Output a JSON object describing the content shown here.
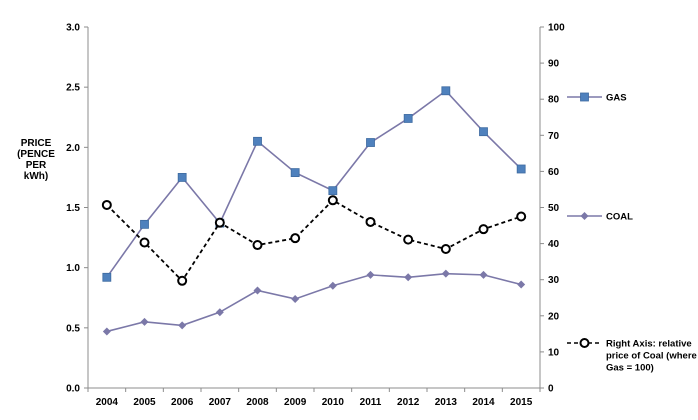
{
  "chart_data": {
    "type": "line",
    "title": "",
    "ylabel_lines": [
      "PRICE",
      "(PENCE",
      "PER",
      "kWh)"
    ],
    "x": [
      "2004",
      "2005",
      "2006",
      "2007",
      "2008",
      "2009",
      "2010",
      "2011",
      "2012",
      "2013",
      "2014",
      "2015"
    ],
    "ylim": [
      0,
      3.0
    ],
    "yticks": [
      "0.0",
      "0.5",
      "1.0",
      "1.5",
      "2.0",
      "2.5",
      "3.0"
    ],
    "y2lim": [
      0,
      100
    ],
    "y2ticks": [
      "0",
      "10",
      "20",
      "30",
      "40",
      "50",
      "60",
      "70",
      "80",
      "90",
      "100"
    ],
    "grid": false,
    "legend_position": "right",
    "series": [
      {
        "name": "GAS",
        "axis": "left",
        "marker": "square",
        "color": "#7b78a8",
        "marker_color": "#4f81bd",
        "values": [
          0.92,
          1.36,
          1.75,
          1.37,
          2.05,
          1.79,
          1.64,
          2.04,
          2.24,
          2.47,
          2.13,
          1.82
        ]
      },
      {
        "name": "COAL",
        "axis": "left",
        "marker": "diamond",
        "color": "#7b78a8",
        "marker_color": "#7b78a8",
        "values": [
          0.47,
          0.55,
          0.52,
          0.63,
          0.81,
          0.74,
          0.85,
          0.94,
          0.92,
          0.95,
          0.94,
          0.86
        ]
      },
      {
        "name": "Right Axis: relative price of Coal (where Gas = 100)",
        "axis": "right",
        "marker": "circle",
        "dashed": true,
        "color": "#000000",
        "legend_lines": [
          "Right Axis: relative",
          "price of Coal (where",
          "Gas = 100)"
        ],
        "values": [
          50.7,
          40.3,
          29.7,
          45.8,
          39.6,
          41.5,
          52.0,
          46.0,
          41.1,
          38.5,
          44.0,
          47.5
        ]
      }
    ]
  }
}
